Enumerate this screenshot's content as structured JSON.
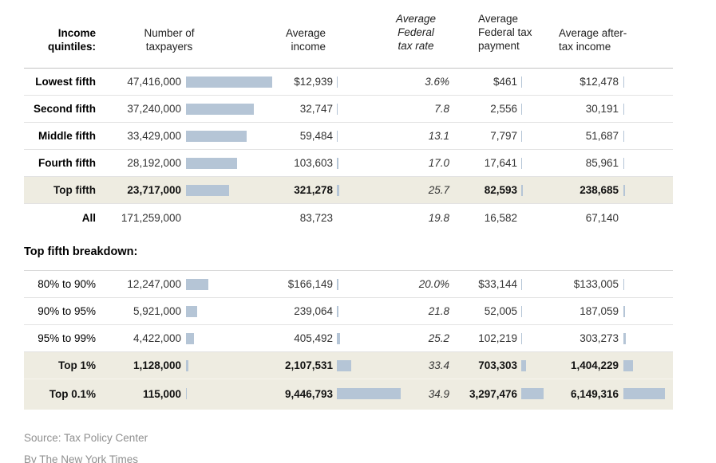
{
  "header": {
    "quintiles": "Income\nquintiles:",
    "taxpayers": "Number of\ntaxpayers",
    "income": "Average\nincome",
    "rate": "Average\nFederal\ntax rate",
    "payment": "Average\nFederal tax\npayment",
    "aftertax": "Average after-\ntax income"
  },
  "breakdown_title": "Top fifth breakdown:",
  "footer": {
    "source": "Source: Tax Policy Center",
    "byline": "By The New York Times"
  },
  "colors": {
    "bar": "#b5c5d6",
    "highlight": "#eeece1"
  },
  "rows": [
    {
      "label": "Lowest fifth",
      "taxpayers": "47,416,000",
      "income": "$12,939",
      "rate": "3.6%",
      "payment": "$461",
      "aftertax": "$12,478",
      "bars": {
        "tp": 108,
        "inc": 1,
        "pay": 1,
        "at": 1
      }
    },
    {
      "label": "Second fifth",
      "taxpayers": "37,240,000",
      "income": "32,747",
      "rate": "7.8",
      "payment": "2,556",
      "aftertax": "30,191",
      "bars": {
        "tp": 85,
        "inc": 1,
        "pay": 1,
        "at": 1
      }
    },
    {
      "label": "Middle fifth",
      "taxpayers": "33,429,000",
      "income": "59,484",
      "rate": "13.1",
      "payment": "7,797",
      "aftertax": "51,687",
      "bars": {
        "tp": 76,
        "inc": 1,
        "pay": 1,
        "at": 1
      }
    },
    {
      "label": "Fourth fifth",
      "taxpayers": "28,192,000",
      "income": "103,603",
      "rate": "17.0",
      "payment": "17,641",
      "aftertax": "85,961",
      "bars": {
        "tp": 64,
        "inc": 1.5,
        "pay": 1,
        "at": 1
      }
    },
    {
      "label": "Top fifth",
      "taxpayers": "23,717,000",
      "income": "321,278",
      "rate": "25.7",
      "payment": "82,593",
      "aftertax": "238,685",
      "bars": {
        "tp": 54,
        "inc": 3,
        "pay": 2,
        "at": 2
      }
    },
    {
      "label": "All",
      "taxpayers": "171,259,000",
      "income": "83,723",
      "rate": "19.8",
      "payment": "16,582",
      "aftertax": "67,140",
      "bars": {
        "tp": 0,
        "inc": 0,
        "pay": 0,
        "at": 0
      }
    },
    {
      "label": "80% to 90%",
      "taxpayers": "12,247,000",
      "income": "$166,149",
      "rate": "20.0%",
      "payment": "$33,144",
      "aftertax": "$133,005",
      "bars": {
        "tp": 28,
        "inc": 1.5,
        "pay": 1,
        "at": 1
      }
    },
    {
      "label": "90% to 95%",
      "taxpayers": "5,921,000",
      "income": "239,064",
      "rate": "21.8",
      "payment": "52,005",
      "aftertax": "187,059",
      "bars": {
        "tp": 13.5,
        "inc": 2,
        "pay": 1,
        "at": 1.5
      }
    },
    {
      "label": "95% to 99%",
      "taxpayers": "4,422,000",
      "income": "405,492",
      "rate": "25.2",
      "payment": "102,219",
      "aftertax": "303,273",
      "bars": {
        "tp": 10,
        "inc": 3.5,
        "pay": 1,
        "at": 2.5
      }
    },
    {
      "label": "Top 1%",
      "taxpayers": "1,128,000",
      "income": "2,107,531",
      "rate": "33.4",
      "payment": "703,303",
      "aftertax": "1,404,229",
      "bars": {
        "tp": 3,
        "inc": 18,
        "pay": 6,
        "at": 12
      }
    },
    {
      "label": "Top 0.1%",
      "taxpayers": "115,000",
      "income": "9,446,793",
      "rate": "34.9",
      "payment": "3,297,476",
      "aftertax": "6,149,316",
      "bars": {
        "tp": 1,
        "inc": 80,
        "pay": 28,
        "at": 52
      }
    }
  ],
  "chart_data": {
    "type": "table",
    "columns": [
      "Income quintiles",
      "Number of taxpayers",
      "Average income ($)",
      "Average Federal tax rate (%)",
      "Average Federal tax payment ($)",
      "Average after-tax income ($)"
    ],
    "sections": [
      {
        "name": "Income quintiles",
        "rows": [
          {
            "group": "Lowest fifth",
            "taxpayers": 47416000,
            "avg_income": 12939,
            "tax_rate": 3.6,
            "tax_payment": 461,
            "after_tax_income": 12478
          },
          {
            "group": "Second fifth",
            "taxpayers": 37240000,
            "avg_income": 32747,
            "tax_rate": 7.8,
            "tax_payment": 2556,
            "after_tax_income": 30191
          },
          {
            "group": "Middle fifth",
            "taxpayers": 33429000,
            "avg_income": 59484,
            "tax_rate": 13.1,
            "tax_payment": 7797,
            "after_tax_income": 51687
          },
          {
            "group": "Fourth fifth",
            "taxpayers": 28192000,
            "avg_income": 103603,
            "tax_rate": 17.0,
            "tax_payment": 17641,
            "after_tax_income": 85961
          },
          {
            "group": "Top fifth",
            "taxpayers": 23717000,
            "avg_income": 321278,
            "tax_rate": 25.7,
            "tax_payment": 82593,
            "after_tax_income": 238685,
            "highlighted": true
          },
          {
            "group": "All",
            "taxpayers": 171259000,
            "avg_income": 83723,
            "tax_rate": 19.8,
            "tax_payment": 16582,
            "after_tax_income": 67140
          }
        ]
      },
      {
        "name": "Top fifth breakdown",
        "rows": [
          {
            "group": "80% to 90%",
            "taxpayers": 12247000,
            "avg_income": 166149,
            "tax_rate": 20.0,
            "tax_payment": 33144,
            "after_tax_income": 133005
          },
          {
            "group": "90% to 95%",
            "taxpayers": 5921000,
            "avg_income": 239064,
            "tax_rate": 21.8,
            "tax_payment": 52005,
            "after_tax_income": 187059
          },
          {
            "group": "95% to 99%",
            "taxpayers": 4422000,
            "avg_income": 405492,
            "tax_rate": 25.2,
            "tax_payment": 102219,
            "after_tax_income": 303273
          },
          {
            "group": "Top 1%",
            "taxpayers": 1128000,
            "avg_income": 2107531,
            "tax_rate": 33.4,
            "tax_payment": 703303,
            "after_tax_income": 1404229,
            "highlighted": true
          },
          {
            "group": "Top 0.1%",
            "taxpayers": 115000,
            "avg_income": 9446793,
            "tax_rate": 34.9,
            "tax_payment": 3297476,
            "after_tax_income": 6149316,
            "highlighted": true
          }
        ]
      }
    ],
    "notes": "In-cell bars next to taxpayer counts and dollar values are proportional to the values; source: Tax Policy Center; byline: The New York Times",
    "legend_position": "none",
    "grid": "horizontal rules between rows"
  }
}
